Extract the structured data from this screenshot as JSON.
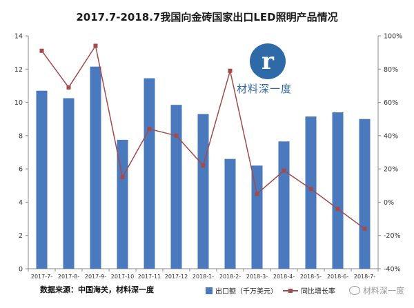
{
  "chart_data": {
    "type": "bar",
    "title": "2017.7-2018.7我国向金砖国家出口LED照明产品情况",
    "categories": [
      "2017-7",
      "2017-8",
      "2017-9",
      "2017-10",
      "2017-11",
      "2017-12",
      "2018-1",
      "2018-2",
      "2018-3",
      "2018-4",
      "2018-5",
      "2018-6",
      "2018-7"
    ],
    "category_labels": [
      "2017-7-",
      "2017-8-",
      "2017-9-",
      "2017-10",
      "2017-11",
      "2017-12",
      "2018-1-",
      "2018-2-",
      "2018-3-",
      "2018-4-",
      "2018-5-",
      "2018-6-",
      "2018-7-"
    ],
    "series": [
      {
        "name": "出口额（千万美元）",
        "type": "bar",
        "axis": "left",
        "color": "#4a79bd",
        "values": [
          10.7,
          10.25,
          12.15,
          7.75,
          11.45,
          9.85,
          9.3,
          6.6,
          6.2,
          7.65,
          9.15,
          9.4,
          9.0
        ]
      },
      {
        "name": "同比增长率",
        "type": "line",
        "axis": "right",
        "color": "#a34a4a",
        "values": [
          91,
          69,
          94,
          15,
          44,
          40,
          22,
          79,
          5,
          19,
          8,
          -4,
          -16
        ]
      }
    ],
    "y_left": {
      "min": 0,
      "max": 14,
      "step": 2,
      "ticks": [
        "0",
        "2",
        "4",
        "6",
        "8",
        "10",
        "12",
        "14"
      ]
    },
    "y_right": {
      "min": -40,
      "max": 100,
      "step": 20,
      "ticks": [
        "-40%",
        "-20%",
        "0%",
        "20%",
        "40%",
        "60%",
        "80%",
        "100%"
      ]
    },
    "grid": false,
    "legend_position": "bottom"
  },
  "source_note": "数据来源：中国海关，材料深一度",
  "logo": {
    "glyph": "r",
    "text": "材料深一度"
  },
  "watermark": "材料深一度",
  "colors": {
    "bar": "#4a79bd",
    "line": "#a34a4a",
    "logo": "#2f6aa8"
  }
}
